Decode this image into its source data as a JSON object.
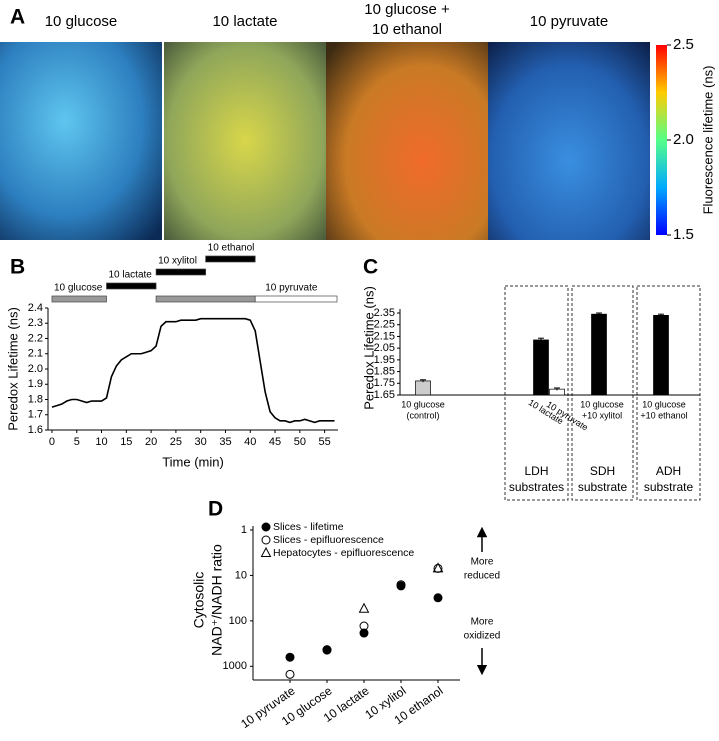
{
  "chart_data": [
    {
      "type": "image",
      "panel": "A",
      "images": [
        {
          "title": [
            "10 glucose"
          ]
        },
        {
          "title": [
            "10 lactate"
          ]
        },
        {
          "title": [
            "10 glucose +",
            "10 ethanol"
          ]
        },
        {
          "title": [
            "10 pyruvate"
          ]
        }
      ],
      "colorbar": {
        "label": "Fluorescence lifetime (ns)",
        "lim": [
          1.5,
          2.5
        ],
        "ticks": [
          1.5,
          {
            "value": 2,
            "label": "2.0"
          },
          2.5
        ]
      }
    },
    {
      "type": "line",
      "panel": "B",
      "xlabel": "Time (min)",
      "ylabel": "Peredox Lifetime (ns)",
      "x": [
        0,
        1,
        2,
        3,
        4,
        5,
        6,
        7,
        8,
        9,
        10,
        11,
        12,
        13,
        14,
        15,
        16,
        17,
        18,
        19,
        20,
        21,
        22,
        23,
        24,
        25,
        26,
        27,
        28,
        29,
        30,
        31,
        32,
        33,
        34,
        35,
        36,
        37,
        38,
        39,
        40,
        41,
        42,
        43,
        44,
        45,
        46,
        47,
        48,
        49,
        50,
        51,
        52,
        53,
        54,
        55,
        56,
        57
      ],
      "series": [
        {
          "color": "#000000",
          "values": [
            1.75,
            1.76,
            1.77,
            1.79,
            1.8,
            1.8,
            1.79,
            1.78,
            1.79,
            1.79,
            1.79,
            1.81,
            1.95,
            2.02,
            2.06,
            2.08,
            2.1,
            2.1,
            2.1,
            2.11,
            2.12,
            2.15,
            2.28,
            2.31,
            2.31,
            2.31,
            2.32,
            2.32,
            2.32,
            2.32,
            2.33,
            2.33,
            2.33,
            2.33,
            2.33,
            2.33,
            2.33,
            2.33,
            2.33,
            2.33,
            2.32,
            2.25,
            2.05,
            1.85,
            1.72,
            1.68,
            1.66,
            1.66,
            1.65,
            1.66,
            1.66,
            1.67,
            1.66,
            1.65,
            1.66,
            1.66,
            1.66,
            1.66
          ]
        }
      ],
      "xlim": [
        -0.8,
        57.7
      ],
      "xticks": [
        0,
        5,
        10,
        15,
        20,
        25,
        30,
        35,
        40,
        45,
        50,
        55
      ],
      "ylim": [
        1.6,
        2.4
      ],
      "yticks": [
        1.6,
        1.7,
        1.8,
        1.9,
        {
          "value": 2,
          "label": "2.0"
        },
        2.1,
        2.2,
        2.3,
        2.4
      ],
      "periods": [
        {
          "label": "10 glucose",
          "start": 0,
          "end": 11,
          "color": "#999999"
        },
        {
          "label": "10 lactate",
          "start": 11,
          "end": 21,
          "color": "#000000"
        },
        {
          "label": "10 xylitol",
          "start": 21,
          "end": 31,
          "color": "#000000"
        },
        {
          "label": "10 ethanol",
          "start": 31,
          "end": 41,
          "color": "#000000"
        },
        {
          "start": 21,
          "end": 41,
          "color": "#999999"
        },
        {
          "label": "10 pyruvate",
          "start": 41,
          "end": 57.5,
          "color": "#ffffff"
        }
      ]
    },
    {
      "type": "bar",
      "panel": "C",
      "ylabel": "Peredox Lifetime (ns)",
      "categories": [
        [
          "10 glucose",
          "(control)"
        ],
        [
          "10 lactate"
        ],
        [
          "10 pyruvate"
        ],
        [
          "10 glucose",
          "+10 xylitol"
        ],
        [
          "10 glucose",
          "+10 ethanol"
        ]
      ],
      "values": [
        1.77,
        2.12,
        1.7,
        2.34,
        2.33
      ],
      "errors": [
        0.01,
        0.015,
        0.01,
        0.01,
        0.01
      ],
      "colors": [
        "#cccccc",
        "#000000",
        "#ffffff",
        "#000000",
        "#000000"
      ],
      "groups": [
        {
          "label": [
            "LDH",
            "substrates"
          ]
        },
        {
          "label": [
            "SDH",
            "substrate"
          ]
        },
        {
          "label": [
            "ADH",
            "substrate"
          ]
        }
      ],
      "ylim": [
        1.65,
        2.35
      ],
      "yticks": [
        1.65,
        1.75,
        1.85,
        1.95,
        2.05,
        2.15,
        2.25,
        2.35
      ]
    },
    {
      "type": "scatter",
      "panel": "D",
      "ylabel": [
        "Cytosolic",
        "NAD⁺/NADH ratio"
      ],
      "categories": [
        "10 pyruvate",
        "10 glucose",
        "10 lactate",
        "10 xylitol",
        "10 ethanol"
      ],
      "series": [
        {
          "name": "Slices - lifetime",
          "marker": "filled-circle",
          "values": [
            630,
            440,
            185,
            17,
            31
          ]
        },
        {
          "name": "Slices - epifluorescence",
          "marker": "open-circle",
          "values": [
            1500,
            430,
            130,
            16,
            7
          ]
        },
        {
          "name": "Hepatocytes - epifluorescence",
          "marker": "open-triangle",
          "values": [
            null,
            null,
            54,
            null,
            7
          ]
        }
      ],
      "log": true,
      "inverted": true,
      "ylim": [
        1,
        2000
      ],
      "yticks": [
        1,
        10,
        100,
        1000
      ],
      "annotations": [
        [
          "More",
          "reduced"
        ],
        [
          "More",
          "oxidized"
        ]
      ]
    }
  ]
}
